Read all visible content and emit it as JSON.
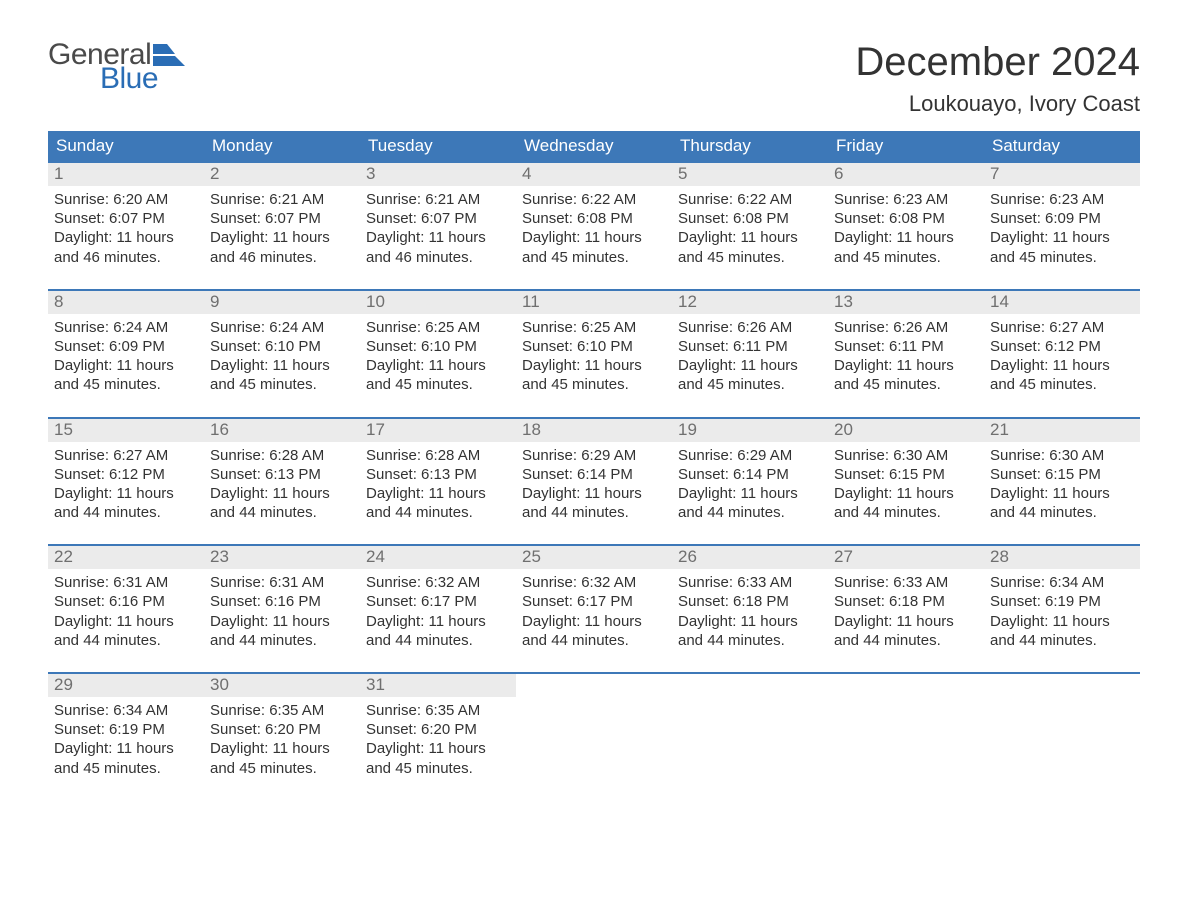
{
  "logo": {
    "word1": "General",
    "word2": "Blue",
    "shape_color": "#2a6db5",
    "text1_color": "#4a4a4a",
    "text2_color": "#2a6db5"
  },
  "title": "December 2024",
  "location": "Loukouayo, Ivory Coast",
  "colors": {
    "header_bg": "#3d78b8",
    "header_text": "#ffffff",
    "row_border": "#3d78b8",
    "daynum_bg": "#ebebeb",
    "daynum_text": "#6f6f6f",
    "body_text": "#333333",
    "page_bg": "#ffffff"
  },
  "typography": {
    "title_fontsize": 40,
    "location_fontsize": 22,
    "dayhead_fontsize": 17,
    "daynum_fontsize": 17,
    "body_fontsize": 15
  },
  "day_headers": [
    "Sunday",
    "Monday",
    "Tuesday",
    "Wednesday",
    "Thursday",
    "Friday",
    "Saturday"
  ],
  "labels": {
    "sunrise": "Sunrise:",
    "sunset": "Sunset:",
    "daylight": "Daylight:"
  },
  "weeks": [
    [
      {
        "n": "1",
        "sunrise": "6:20 AM",
        "sunset": "6:07 PM",
        "daylight": "11 hours and 46 minutes."
      },
      {
        "n": "2",
        "sunrise": "6:21 AM",
        "sunset": "6:07 PM",
        "daylight": "11 hours and 46 minutes."
      },
      {
        "n": "3",
        "sunrise": "6:21 AM",
        "sunset": "6:07 PM",
        "daylight": "11 hours and 46 minutes."
      },
      {
        "n": "4",
        "sunrise": "6:22 AM",
        "sunset": "6:08 PM",
        "daylight": "11 hours and 45 minutes."
      },
      {
        "n": "5",
        "sunrise": "6:22 AM",
        "sunset": "6:08 PM",
        "daylight": "11 hours and 45 minutes."
      },
      {
        "n": "6",
        "sunrise": "6:23 AM",
        "sunset": "6:08 PM",
        "daylight": "11 hours and 45 minutes."
      },
      {
        "n": "7",
        "sunrise": "6:23 AM",
        "sunset": "6:09 PM",
        "daylight": "11 hours and 45 minutes."
      }
    ],
    [
      {
        "n": "8",
        "sunrise": "6:24 AM",
        "sunset": "6:09 PM",
        "daylight": "11 hours and 45 minutes."
      },
      {
        "n": "9",
        "sunrise": "6:24 AM",
        "sunset": "6:10 PM",
        "daylight": "11 hours and 45 minutes."
      },
      {
        "n": "10",
        "sunrise": "6:25 AM",
        "sunset": "6:10 PM",
        "daylight": "11 hours and 45 minutes."
      },
      {
        "n": "11",
        "sunrise": "6:25 AM",
        "sunset": "6:10 PM",
        "daylight": "11 hours and 45 minutes."
      },
      {
        "n": "12",
        "sunrise": "6:26 AM",
        "sunset": "6:11 PM",
        "daylight": "11 hours and 45 minutes."
      },
      {
        "n": "13",
        "sunrise": "6:26 AM",
        "sunset": "6:11 PM",
        "daylight": "11 hours and 45 minutes."
      },
      {
        "n": "14",
        "sunrise": "6:27 AM",
        "sunset": "6:12 PM",
        "daylight": "11 hours and 45 minutes."
      }
    ],
    [
      {
        "n": "15",
        "sunrise": "6:27 AM",
        "sunset": "6:12 PM",
        "daylight": "11 hours and 44 minutes."
      },
      {
        "n": "16",
        "sunrise": "6:28 AM",
        "sunset": "6:13 PM",
        "daylight": "11 hours and 44 minutes."
      },
      {
        "n": "17",
        "sunrise": "6:28 AM",
        "sunset": "6:13 PM",
        "daylight": "11 hours and 44 minutes."
      },
      {
        "n": "18",
        "sunrise": "6:29 AM",
        "sunset": "6:14 PM",
        "daylight": "11 hours and 44 minutes."
      },
      {
        "n": "19",
        "sunrise": "6:29 AM",
        "sunset": "6:14 PM",
        "daylight": "11 hours and 44 minutes."
      },
      {
        "n": "20",
        "sunrise": "6:30 AM",
        "sunset": "6:15 PM",
        "daylight": "11 hours and 44 minutes."
      },
      {
        "n": "21",
        "sunrise": "6:30 AM",
        "sunset": "6:15 PM",
        "daylight": "11 hours and 44 minutes."
      }
    ],
    [
      {
        "n": "22",
        "sunrise": "6:31 AM",
        "sunset": "6:16 PM",
        "daylight": "11 hours and 44 minutes."
      },
      {
        "n": "23",
        "sunrise": "6:31 AM",
        "sunset": "6:16 PM",
        "daylight": "11 hours and 44 minutes."
      },
      {
        "n": "24",
        "sunrise": "6:32 AM",
        "sunset": "6:17 PM",
        "daylight": "11 hours and 44 minutes."
      },
      {
        "n": "25",
        "sunrise": "6:32 AM",
        "sunset": "6:17 PM",
        "daylight": "11 hours and 44 minutes."
      },
      {
        "n": "26",
        "sunrise": "6:33 AM",
        "sunset": "6:18 PM",
        "daylight": "11 hours and 44 minutes."
      },
      {
        "n": "27",
        "sunrise": "6:33 AM",
        "sunset": "6:18 PM",
        "daylight": "11 hours and 44 minutes."
      },
      {
        "n": "28",
        "sunrise": "6:34 AM",
        "sunset": "6:19 PM",
        "daylight": "11 hours and 44 minutes."
      }
    ],
    [
      {
        "n": "29",
        "sunrise": "6:34 AM",
        "sunset": "6:19 PM",
        "daylight": "11 hours and 45 minutes."
      },
      {
        "n": "30",
        "sunrise": "6:35 AM",
        "sunset": "6:20 PM",
        "daylight": "11 hours and 45 minutes."
      },
      {
        "n": "31",
        "sunrise": "6:35 AM",
        "sunset": "6:20 PM",
        "daylight": "11 hours and 45 minutes."
      },
      null,
      null,
      null,
      null
    ]
  ]
}
